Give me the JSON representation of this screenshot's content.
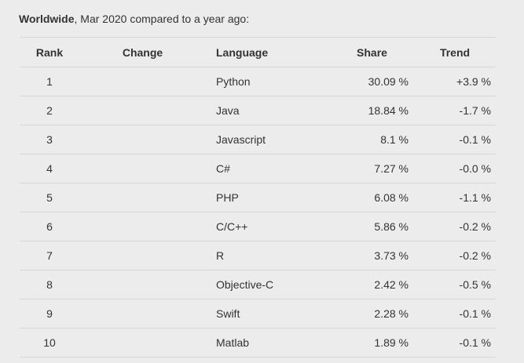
{
  "header": {
    "region": "Worldwide",
    "subtitle": ", Mar 2020 compared to a year ago:"
  },
  "table": {
    "columns": [
      {
        "key": "rank",
        "label": "Rank"
      },
      {
        "key": "change",
        "label": "Change"
      },
      {
        "key": "language",
        "label": "Language"
      },
      {
        "key": "share",
        "label": "Share"
      },
      {
        "key": "trend",
        "label": "Trend"
      }
    ],
    "rows": [
      {
        "rank": "1",
        "change": "",
        "language": "Python",
        "share": "30.09 %",
        "trend": "+3.9 %"
      },
      {
        "rank": "2",
        "change": "",
        "language": "Java",
        "share": "18.84 %",
        "trend": "-1.7 %"
      },
      {
        "rank": "3",
        "change": "",
        "language": "Javascript",
        "share": "8.1 %",
        "trend": "-0.1 %"
      },
      {
        "rank": "4",
        "change": "",
        "language": "C#",
        "share": "7.27 %",
        "trend": "-0.0 %"
      },
      {
        "rank": "5",
        "change": "",
        "language": "PHP",
        "share": "6.08 %",
        "trend": "-1.1 %"
      },
      {
        "rank": "6",
        "change": "",
        "language": "C/C++",
        "share": "5.86 %",
        "trend": "-0.2 %"
      },
      {
        "rank": "7",
        "change": "",
        "language": "R",
        "share": "3.73 %",
        "trend": "-0.2 %"
      },
      {
        "rank": "8",
        "change": "",
        "language": "Objective-C",
        "share": "2.42 %",
        "trend": "-0.5 %"
      },
      {
        "rank": "9",
        "change": "",
        "language": "Swift",
        "share": "2.28 %",
        "trend": "-0.1 %"
      },
      {
        "rank": "10",
        "change": "",
        "language": "Matlab",
        "share": "1.89 %",
        "trend": "-0.1 %"
      }
    ]
  },
  "chart_data": {
    "type": "table",
    "title": "Worldwide, Mar 2020 compared to a year ago:",
    "columns": [
      "Rank",
      "Change",
      "Language",
      "Share",
      "Trend"
    ],
    "languages": [
      "Python",
      "Java",
      "Javascript",
      "C#",
      "PHP",
      "C/C++",
      "R",
      "Objective-C",
      "Swift",
      "Matlab"
    ],
    "share_percent": [
      30.09,
      18.84,
      8.1,
      7.27,
      6.08,
      5.86,
      3.73,
      2.42,
      2.28,
      1.89
    ],
    "trend_percent": [
      3.9,
      -1.7,
      -0.1,
      -0.0,
      -1.1,
      -0.2,
      -0.2,
      -0.5,
      -0.1,
      -0.1
    ]
  },
  "colors": {
    "page_background": "#ececec",
    "divider": "#d6d6d6",
    "text": "#333333"
  }
}
